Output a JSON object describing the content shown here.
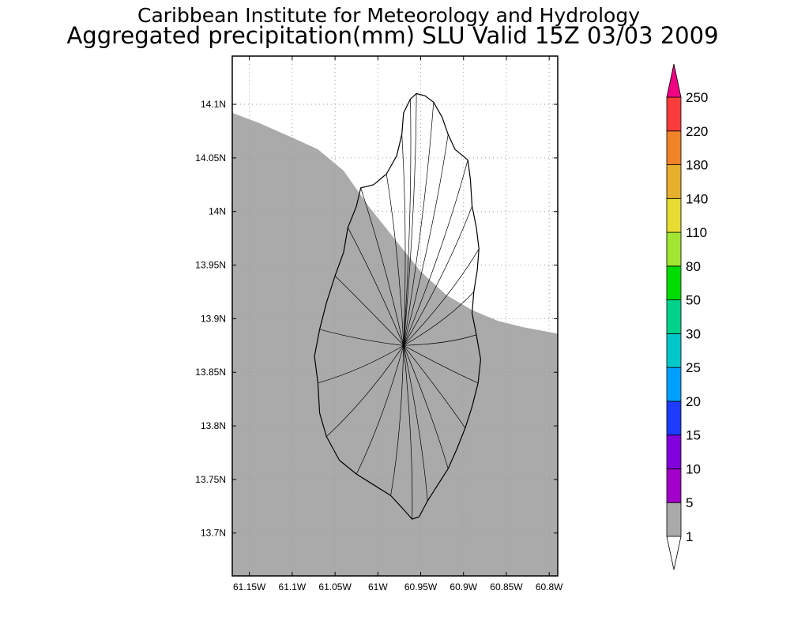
{
  "header": {
    "institute": "Caribbean Institute for Meteorology and Hydrology",
    "product": "Aggregated precipitation(mm) SLU Valid 15Z 03/03 2009"
  },
  "map": {
    "lon_range": [
      -61.17,
      -60.79
    ],
    "lat_range": [
      13.66,
      14.145
    ],
    "lat_ticks": [
      {
        "value": 14.1,
        "label": "14.1N"
      },
      {
        "value": 14.05,
        "label": "14.05N"
      },
      {
        "value": 14.0,
        "label": "14N"
      },
      {
        "value": 13.95,
        "label": "13.95N"
      },
      {
        "value": 13.9,
        "label": "13.9N"
      },
      {
        "value": 13.85,
        "label": "13.85N"
      },
      {
        "value": 13.8,
        "label": "13.8N"
      },
      {
        "value": 13.75,
        "label": "13.75N"
      },
      {
        "value": 13.7,
        "label": "13.7N"
      }
    ],
    "lon_ticks": [
      {
        "value": -61.15,
        "label": "61.15W"
      },
      {
        "value": -61.1,
        "label": "61.1W"
      },
      {
        "value": -61.05,
        "label": "61.05W"
      },
      {
        "value": -61.0,
        "label": "61W"
      },
      {
        "value": -60.95,
        "label": "60.95W"
      },
      {
        "value": -60.9,
        "label": "60.9W"
      },
      {
        "value": -60.85,
        "label": "60.85W"
      },
      {
        "value": -60.8,
        "label": "60.8W"
      }
    ],
    "shaded_region": {
      "band": "1-5",
      "color": "#aaaaaa",
      "boundary": [
        [
          -61.17,
          14.092
        ],
        [
          -61.14,
          14.083
        ],
        [
          -61.1,
          14.069
        ],
        [
          -61.07,
          14.058
        ],
        [
          -61.04,
          14.038
        ],
        [
          -61.01,
          14.004
        ],
        [
          -60.98,
          13.974
        ],
        [
          -60.95,
          13.944
        ],
        [
          -60.92,
          13.922
        ],
        [
          -60.89,
          13.908
        ],
        [
          -60.86,
          13.898
        ],
        [
          -60.83,
          13.892
        ],
        [
          -60.79,
          13.886
        ]
      ]
    },
    "island_outline": [
      [
        -60.955,
        14.11
      ],
      [
        -60.945,
        14.108
      ],
      [
        -60.935,
        14.102
      ],
      [
        -60.925,
        14.088
      ],
      [
        -60.918,
        14.072
      ],
      [
        -60.91,
        14.058
      ],
      [
        -60.895,
        14.048
      ],
      [
        -60.892,
        14.03
      ],
      [
        -60.89,
        14.005
      ],
      [
        -60.885,
        13.985
      ],
      [
        -60.882,
        13.965
      ],
      [
        -60.884,
        13.945
      ],
      [
        -60.888,
        13.925
      ],
      [
        -60.89,
        13.905
      ],
      [
        -60.885,
        13.885
      ],
      [
        -60.88,
        13.862
      ],
      [
        -60.883,
        13.84
      ],
      [
        -60.89,
        13.818
      ],
      [
        -60.898,
        13.798
      ],
      [
        -60.908,
        13.778
      ],
      [
        -60.918,
        13.76
      ],
      [
        -60.93,
        13.745
      ],
      [
        -60.942,
        13.73
      ],
      [
        -60.952,
        13.715
      ],
      [
        -60.96,
        13.713
      ],
      [
        -60.97,
        13.722
      ],
      [
        -60.985,
        13.735
      ],
      [
        -61.005,
        13.745
      ],
      [
        -61.025,
        13.755
      ],
      [
        -61.045,
        13.768
      ],
      [
        -61.06,
        13.79
      ],
      [
        -61.068,
        13.812
      ],
      [
        -61.07,
        13.84
      ],
      [
        -61.074,
        13.865
      ],
      [
        -61.068,
        13.89
      ],
      [
        -61.06,
        13.915
      ],
      [
        -61.05,
        13.94
      ],
      [
        -61.04,
        13.962
      ],
      [
        -61.035,
        13.985
      ],
      [
        -61.025,
        14.005
      ],
      [
        -61.02,
        14.022
      ],
      [
        -61.005,
        14.025
      ],
      [
        -60.99,
        14.035
      ],
      [
        -60.978,
        14.052
      ],
      [
        -60.972,
        14.072
      ],
      [
        -60.97,
        14.092
      ],
      [
        -60.962,
        14.105
      ],
      [
        -60.955,
        14.11
      ]
    ],
    "boundary_style": {
      "stroke": "#000000"
    },
    "grid_color": "#9a9a9a"
  },
  "colorbar": {
    "levels": [
      {
        "label": "1",
        "color": "#ffffff"
      },
      {
        "label": "5",
        "color": "#aaaaaa"
      },
      {
        "label": "10",
        "color": "#a000c8"
      },
      {
        "label": "15",
        "color": "#8200dc"
      },
      {
        "label": "20",
        "color": "#1e3cff"
      },
      {
        "label": "25",
        "color": "#00a0ff"
      },
      {
        "label": "30",
        "color": "#00c8c8"
      },
      {
        "label": "50",
        "color": "#00d28c"
      },
      {
        "label": "80",
        "color": "#00dc00"
      },
      {
        "label": "110",
        "color": "#a0e632"
      },
      {
        "label": "140",
        "color": "#e6dc32"
      },
      {
        "label": "180",
        "color": "#e6af2d"
      },
      {
        "label": "220",
        "color": "#f08228"
      },
      {
        "label": "250",
        "color": "#fa3c3c"
      }
    ],
    "top_arrow_color": "#f00082",
    "bottom_arrow_color": "#ffffff"
  }
}
